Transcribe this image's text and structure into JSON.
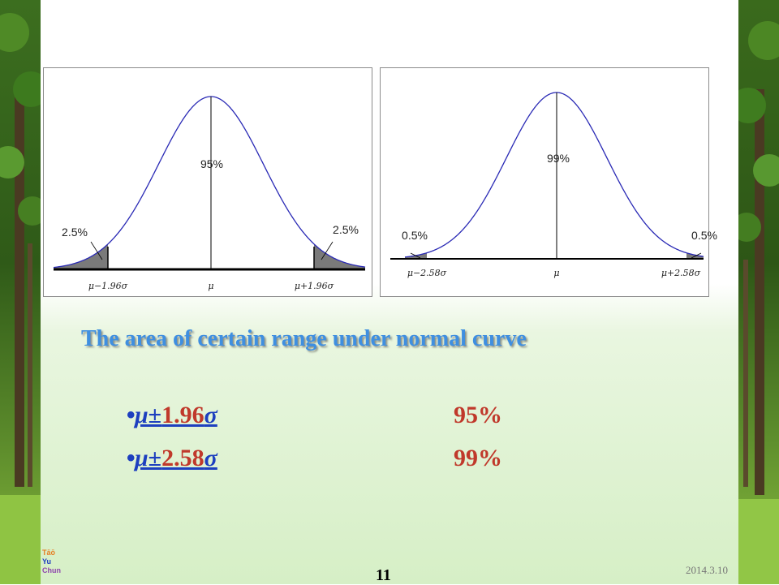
{
  "colors": {
    "heading": "#3f8fe0",
    "symbol": "#1d3fbf",
    "number": "#c0392b",
    "curve": "#2a2ab5",
    "tail": "#7a7a7a"
  },
  "diagram_95": {
    "center_percent": "95%",
    "tail_left_percent": "2.5%",
    "tail_right_percent": "2.5%",
    "axis_left": "μ−1.96σ",
    "axis_center": "μ",
    "axis_right": "μ+1.96σ"
  },
  "diagram_99": {
    "center_percent": "99%",
    "tail_left_percent": "0.5%",
    "tail_right_percent": "0.5%",
    "axis_left": "μ−2.58σ",
    "axis_center": "μ",
    "axis_right": "μ+2.58σ"
  },
  "heading": "The area of certain range under normal curve",
  "rows": [
    {
      "bullet": "•",
      "mu": "μ±",
      "value": "1.96",
      "sigma": "σ",
      "percent": "95%"
    },
    {
      "bullet": "•",
      "mu": "μ±",
      "value": "2.58",
      "sigma": "σ",
      "percent": "99%"
    }
  ],
  "logo": {
    "line1": "Tāō",
    "line2": "Yu",
    "line3": "Chun"
  },
  "page_number": "11",
  "date": "2014.3.10"
}
